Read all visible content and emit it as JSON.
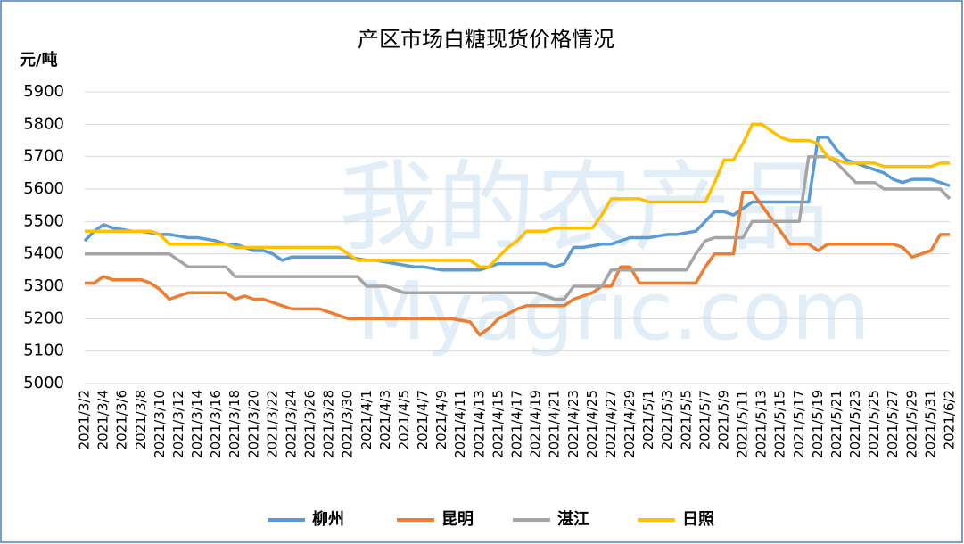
{
  "chart_data": {
    "type": "line",
    "title": "产区市场白糖现货价格情况",
    "y_unit": "元/吨",
    "watermark": [
      "我的农产品",
      "Myagric.com"
    ],
    "categories": [
      "2021/3/2",
      null,
      "2021/3/4",
      null,
      "2021/3/6",
      null,
      "2021/3/8",
      null,
      "2021/3/10",
      null,
      "2021/3/12",
      null,
      "2021/3/14",
      null,
      "2021/3/16",
      null,
      "2021/3/18",
      null,
      "2021/3/20",
      null,
      "2021/3/22",
      null,
      "2021/3/24",
      null,
      "2021/3/26",
      null,
      "2021/3/28",
      null,
      "2021/3/30",
      null,
      "2021/4/1",
      null,
      "2021/4/3",
      null,
      "2021/4/5",
      null,
      "2021/4/7",
      null,
      "2021/4/9",
      null,
      "2021/4/11",
      null,
      "2021/4/13",
      null,
      "2021/4/15",
      null,
      "2021/4/17",
      null,
      "2021/4/19",
      null,
      "2021/4/21",
      null,
      "2021/4/23",
      null,
      "2021/4/25",
      null,
      "2021/4/27",
      null,
      "2021/4/29",
      null,
      "2021/5/1",
      null,
      "2021/5/3",
      null,
      "2021/5/5",
      null,
      "2021/5/7",
      null,
      "2021/5/9",
      null,
      "2021/5/11",
      null,
      "2021/5/13",
      null,
      "2021/5/15",
      null,
      "2021/5/17",
      null,
      "2021/5/19",
      null,
      "2021/5/21",
      null,
      "2021/5/23",
      null,
      "2021/5/25",
      null,
      "2021/5/27",
      null,
      "2021/5/29",
      null,
      "2021/5/31",
      null,
      "2021/6/2"
    ],
    "series": [
      {
        "name": "柳州",
        "color": "#5b9bd5",
        "values": [
          5440,
          5470,
          5490,
          5480,
          5475,
          5470,
          5470,
          5465,
          5460,
          5460,
          5455,
          5450,
          5450,
          5445,
          5440,
          5430,
          5430,
          5420,
          5410,
          5410,
          5400,
          5380,
          5390,
          5390,
          5390,
          5390,
          5390,
          5390,
          5390,
          5385,
          5380,
          5380,
          5375,
          5370,
          5365,
          5360,
          5360,
          5355,
          5350,
          5350,
          5350,
          5350,
          5350,
          5360,
          5370,
          5370,
          5370,
          5370,
          5370,
          5370,
          5360,
          5370,
          5420,
          5420,
          5425,
          5430,
          5430,
          5440,
          5450,
          5450,
          5450,
          5455,
          5460,
          5460,
          5465,
          5470,
          5500,
          5530,
          5530,
          5520,
          5540,
          5560,
          5560,
          5560,
          5560,
          5560,
          5560,
          5560,
          5760,
          5760,
          5720,
          5690,
          5680,
          5670,
          5660,
          5650,
          5630,
          5620,
          5630,
          5630,
          5630,
          5620,
          5610
        ]
      },
      {
        "name": "昆明",
        "color": "#ed7d31",
        "values": [
          5310,
          5310,
          5330,
          5320,
          5320,
          5320,
          5320,
          5310,
          5290,
          5260,
          5270,
          5280,
          5280,
          5280,
          5280,
          5280,
          5260,
          5270,
          5260,
          5260,
          5250,
          5240,
          5230,
          5230,
          5230,
          5230,
          5220,
          5210,
          5200,
          5200,
          5200,
          5200,
          5200,
          5200,
          5200,
          5200,
          5200,
          5200,
          5200,
          5200,
          5195,
          5190,
          5150,
          5170,
          5200,
          5215,
          5230,
          5240,
          5240,
          5240,
          5240,
          5240,
          5260,
          5270,
          5280,
          5300,
          5300,
          5360,
          5360,
          5310,
          5310,
          5310,
          5310,
          5310,
          5310,
          5310,
          5360,
          5400,
          5400,
          5400,
          5590,
          5590,
          5550,
          5510,
          5470,
          5430,
          5430,
          5430,
          5410,
          5430,
          5430,
          5430,
          5430,
          5430,
          5430,
          5430,
          5430,
          5420,
          5390,
          5400,
          5410,
          5460,
          5460
        ]
      },
      {
        "name": "湛江",
        "color": "#a5a5a5",
        "values": [
          5400,
          5400,
          5400,
          5400,
          5400,
          5400,
          5400,
          5400,
          5400,
          5400,
          5380,
          5360,
          5360,
          5360,
          5360,
          5360,
          5330,
          5330,
          5330,
          5330,
          5330,
          5330,
          5330,
          5330,
          5330,
          5330,
          5330,
          5330,
          5330,
          5330,
          5300,
          5300,
          5300,
          5290,
          5280,
          5280,
          5280,
          5280,
          5280,
          5280,
          5280,
          5280,
          5280,
          5280,
          5280,
          5280,
          5280,
          5280,
          5280,
          5270,
          5260,
          5260,
          5300,
          5300,
          5300,
          5300,
          5350,
          5350,
          5350,
          5350,
          5350,
          5350,
          5350,
          5350,
          5350,
          5400,
          5440,
          5450,
          5450,
          5450,
          5450,
          5500,
          5500,
          5500,
          5500,
          5500,
          5500,
          5700,
          5700,
          5700,
          5680,
          5650,
          5620,
          5620,
          5620,
          5600,
          5600,
          5600,
          5600,
          5600,
          5600,
          5600,
          5570
        ]
      },
      {
        "name": "日照",
        "color": "#ffc000",
        "values": [
          5470,
          5470,
          5470,
          5470,
          5470,
          5470,
          5470,
          5470,
          5460,
          5430,
          5430,
          5430,
          5430,
          5430,
          5430,
          5430,
          5420,
          5420,
          5420,
          5420,
          5420,
          5420,
          5420,
          5420,
          5420,
          5420,
          5420,
          5420,
          5400,
          5380,
          5380,
          5380,
          5380,
          5380,
          5380,
          5380,
          5380,
          5380,
          5380,
          5380,
          5380,
          5380,
          5360,
          5360,
          5390,
          5420,
          5440,
          5470,
          5470,
          5470,
          5480,
          5480,
          5480,
          5480,
          5480,
          5520,
          5570,
          5570,
          5570,
          5570,
          5560,
          5560,
          5560,
          5560,
          5560,
          5560,
          5560,
          5620,
          5690,
          5690,
          5740,
          5800,
          5800,
          5780,
          5760,
          5750,
          5750,
          5750,
          5740,
          5700,
          5690,
          5680,
          5680,
          5680,
          5680,
          5670,
          5670,
          5670,
          5670,
          5670,
          5670,
          5680,
          5680
        ]
      }
    ],
    "ylim": [
      5000,
      5900
    ],
    "yticks": [
      5000,
      5100,
      5200,
      5300,
      5400,
      5500,
      5600,
      5700,
      5800,
      5900
    ],
    "grid": true,
    "legend": "bottom"
  }
}
